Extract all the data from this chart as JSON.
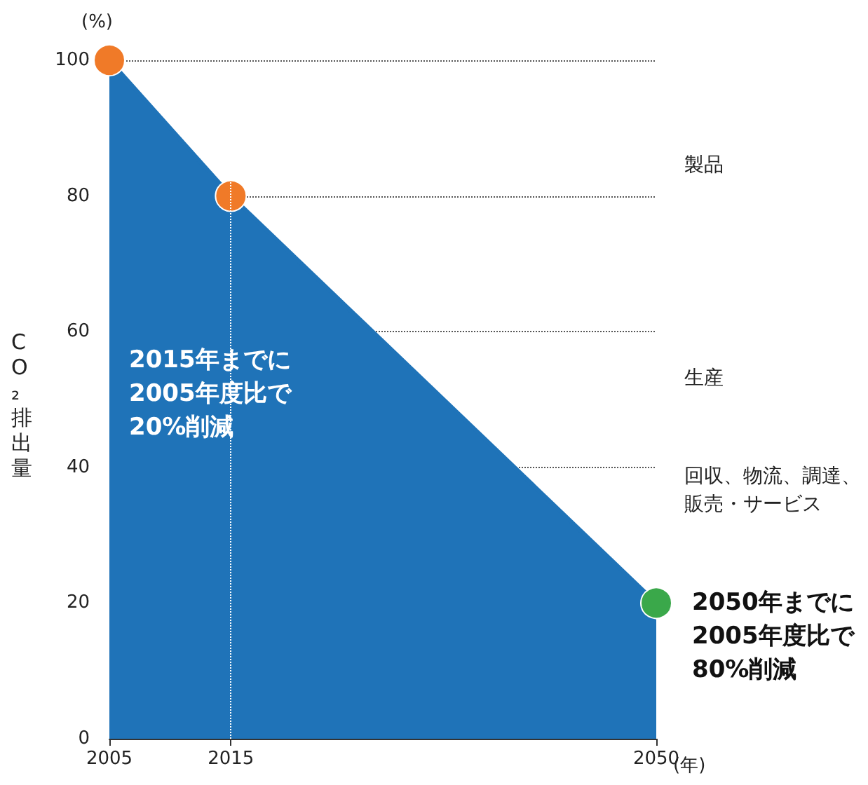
{
  "chart_data": {
    "type": "area",
    "ylabel": "CO₂排出量",
    "xlabel": "(年)",
    "x": [
      2005,
      2015,
      2050
    ],
    "series": [
      {
        "color": "#1f73b8",
        "values": [
          100,
          80,
          20
        ],
        "colors": [
          "#f07a28",
          "#f07a28",
          "#3aa84a"
        ]
      }
    ],
    "xlim": [
      2005,
      2050
    ],
    "xticks": [
      2005,
      2015,
      2050
    ],
    "ylim": [
      0,
      100
    ],
    "yticks": [
      0,
      20,
      40,
      60,
      80,
      100
    ],
    "grid": "y",
    "marker": "circle",
    "line_style": "solid",
    "ref_lines": [
      {
        "axis": "x",
        "value": 2015,
        "label": null
      }
    ],
    "annotations": [
      "(%)",
      "2015年までに\n2005年度比で\n20%削減",
      {
        "text": "2050年までに\n2005年度比で\n80%削減",
        "x": 2050,
        "y": 20
      },
      "製品",
      "生産",
      "回収、物流、調達、販売・サービス"
    ]
  }
}
